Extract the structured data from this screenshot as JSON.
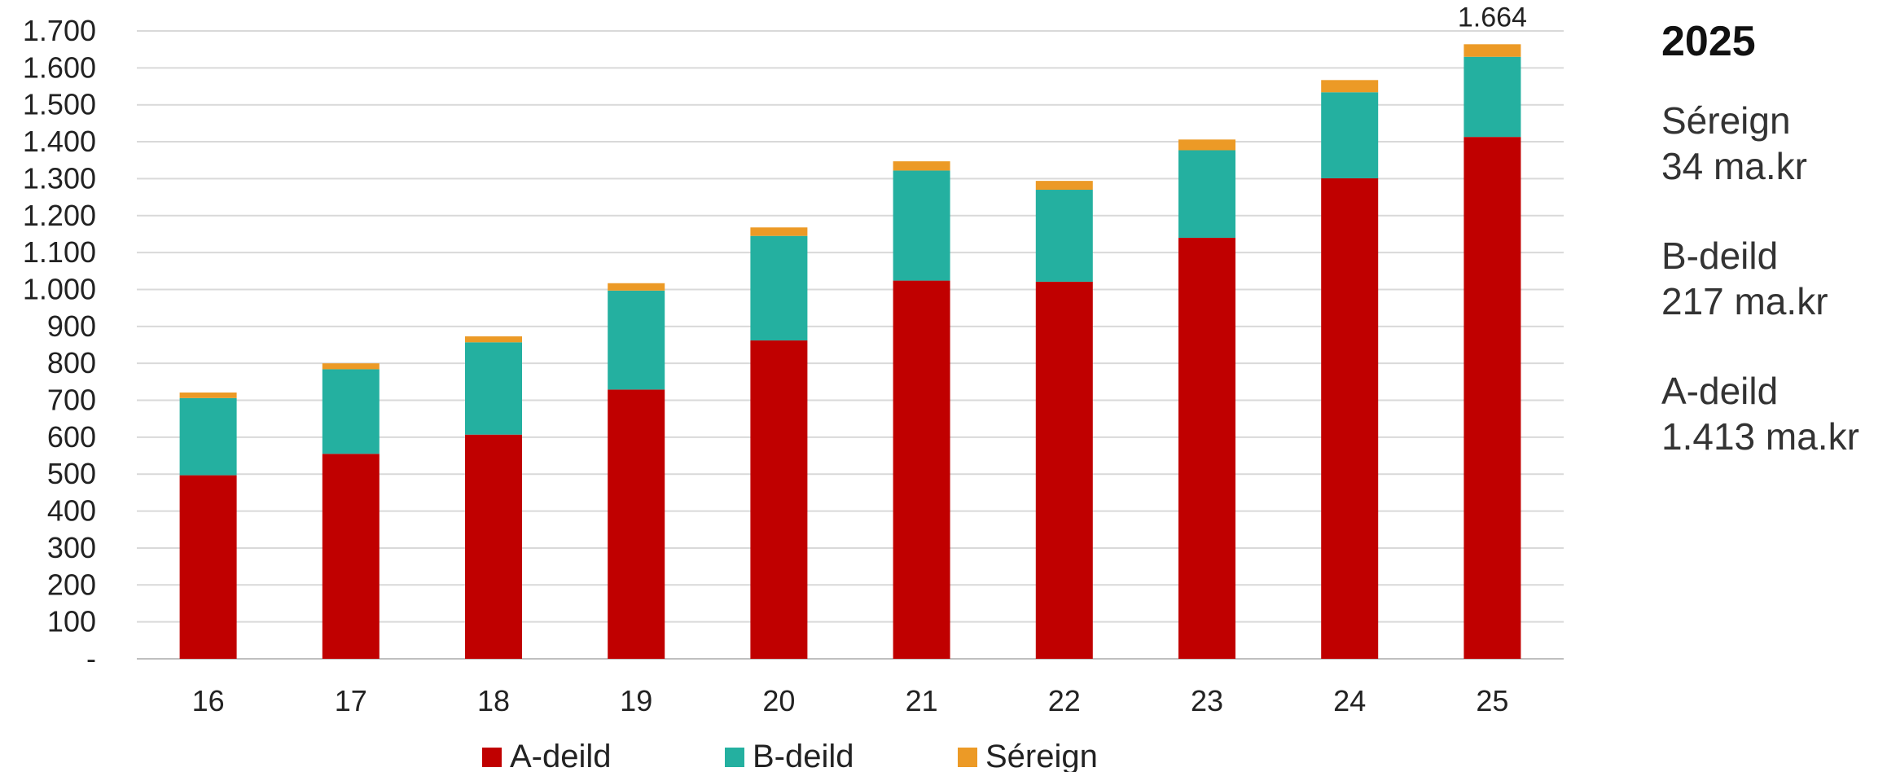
{
  "chart_data": {
    "type": "bar",
    "stacked": true,
    "categories": [
      "16",
      "17",
      "18",
      "19",
      "20",
      "21",
      "22",
      "23",
      "24",
      "25"
    ],
    "series": [
      {
        "name": "A-deild",
        "color": "#c00000",
        "values": [
          497,
          555,
          607,
          729,
          862,
          1024,
          1021,
          1140,
          1301,
          1413
        ]
      },
      {
        "name": "B-deild",
        "color": "#24b0a0",
        "values": [
          209,
          229,
          250,
          268,
          283,
          298,
          249,
          237,
          233,
          217
        ]
      },
      {
        "name": "Séreign",
        "color": "#ec9a26",
        "values": [
          15,
          16,
          16,
          20,
          23,
          25,
          24,
          29,
          33,
          34
        ]
      }
    ],
    "y_ticks": [
      "-",
      "100",
      "200",
      "300",
      "400",
      "500",
      "600",
      "700",
      "800",
      "900",
      "1.000",
      "1.100",
      "1.200",
      "1.300",
      "1.400",
      "1.500",
      "1.600",
      "1.700"
    ],
    "ylim": [
      0,
      1700
    ],
    "grid": true,
    "legend_position": "bottom",
    "annotations": [
      {
        "category": "25",
        "text": "1.664"
      }
    ],
    "title": "",
    "xlabel": "",
    "ylabel": ""
  },
  "side_panel": {
    "year": "2025",
    "items": [
      {
        "label": "Séreign",
        "value": "34 ma.kr"
      },
      {
        "label": "B-deild",
        "value": "217 ma.kr"
      },
      {
        "label": "A-deild",
        "value": "1.413 ma.kr"
      }
    ]
  }
}
